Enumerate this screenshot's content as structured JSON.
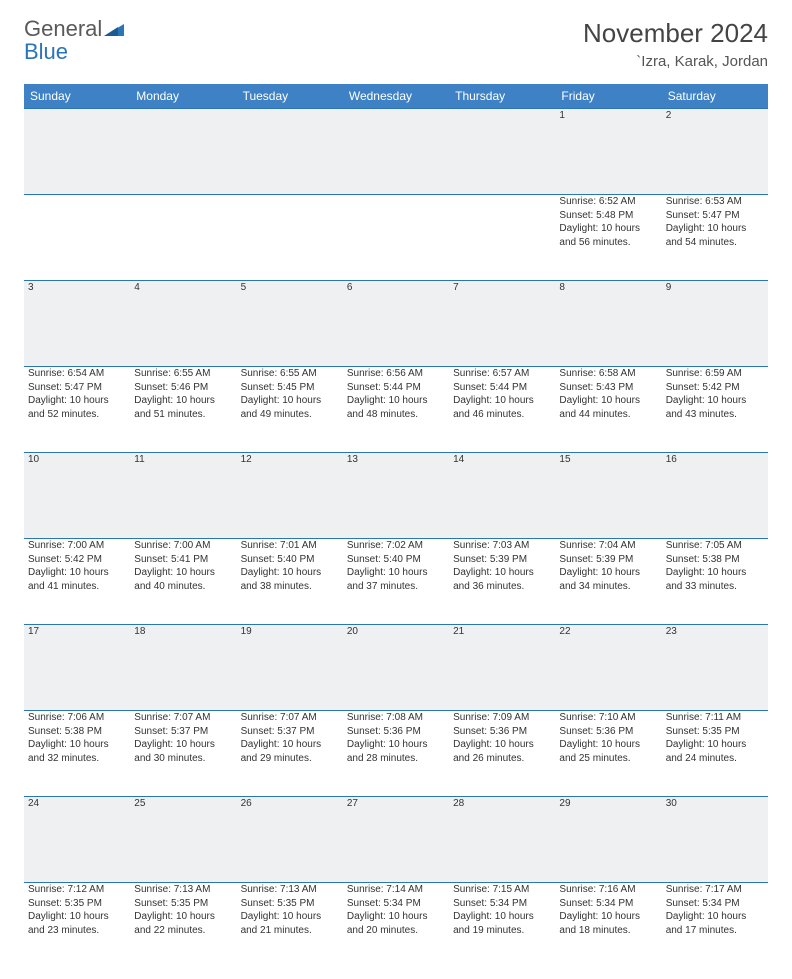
{
  "logo": {
    "line1": "General",
    "line2": "Blue"
  },
  "title": "November 2024",
  "subtitle": "`Izra, Karak, Jordan",
  "header_bg": "#3e81c4",
  "header_fg": "#ffffff",
  "daynum_bg": "#eef0f2",
  "border_color": "#2a74b8",
  "weekdays": [
    "Sunday",
    "Monday",
    "Tuesday",
    "Wednesday",
    "Thursday",
    "Friday",
    "Saturday"
  ],
  "weeks": [
    {
      "nums": [
        "",
        "",
        "",
        "",
        "",
        "1",
        "2"
      ],
      "cells": [
        "",
        "",
        "",
        "",
        "",
        "Sunrise: 6:52 AM\nSunset: 5:48 PM\nDaylight: 10 hours and 56 minutes.",
        "Sunrise: 6:53 AM\nSunset: 5:47 PM\nDaylight: 10 hours and 54 minutes."
      ]
    },
    {
      "nums": [
        "3",
        "4",
        "5",
        "6",
        "7",
        "8",
        "9"
      ],
      "cells": [
        "Sunrise: 6:54 AM\nSunset: 5:47 PM\nDaylight: 10 hours and 52 minutes.",
        "Sunrise: 6:55 AM\nSunset: 5:46 PM\nDaylight: 10 hours and 51 minutes.",
        "Sunrise: 6:55 AM\nSunset: 5:45 PM\nDaylight: 10 hours and 49 minutes.",
        "Sunrise: 6:56 AM\nSunset: 5:44 PM\nDaylight: 10 hours and 48 minutes.",
        "Sunrise: 6:57 AM\nSunset: 5:44 PM\nDaylight: 10 hours and 46 minutes.",
        "Sunrise: 6:58 AM\nSunset: 5:43 PM\nDaylight: 10 hours and 44 minutes.",
        "Sunrise: 6:59 AM\nSunset: 5:42 PM\nDaylight: 10 hours and 43 minutes."
      ]
    },
    {
      "nums": [
        "10",
        "11",
        "12",
        "13",
        "14",
        "15",
        "16"
      ],
      "cells": [
        "Sunrise: 7:00 AM\nSunset: 5:42 PM\nDaylight: 10 hours and 41 minutes.",
        "Sunrise: 7:00 AM\nSunset: 5:41 PM\nDaylight: 10 hours and 40 minutes.",
        "Sunrise: 7:01 AM\nSunset: 5:40 PM\nDaylight: 10 hours and 38 minutes.",
        "Sunrise: 7:02 AM\nSunset: 5:40 PM\nDaylight: 10 hours and 37 minutes.",
        "Sunrise: 7:03 AM\nSunset: 5:39 PM\nDaylight: 10 hours and 36 minutes.",
        "Sunrise: 7:04 AM\nSunset: 5:39 PM\nDaylight: 10 hours and 34 minutes.",
        "Sunrise: 7:05 AM\nSunset: 5:38 PM\nDaylight: 10 hours and 33 minutes."
      ]
    },
    {
      "nums": [
        "17",
        "18",
        "19",
        "20",
        "21",
        "22",
        "23"
      ],
      "cells": [
        "Sunrise: 7:06 AM\nSunset: 5:38 PM\nDaylight: 10 hours and 32 minutes.",
        "Sunrise: 7:07 AM\nSunset: 5:37 PM\nDaylight: 10 hours and 30 minutes.",
        "Sunrise: 7:07 AM\nSunset: 5:37 PM\nDaylight: 10 hours and 29 minutes.",
        "Sunrise: 7:08 AM\nSunset: 5:36 PM\nDaylight: 10 hours and 28 minutes.",
        "Sunrise: 7:09 AM\nSunset: 5:36 PM\nDaylight: 10 hours and 26 minutes.",
        "Sunrise: 7:10 AM\nSunset: 5:36 PM\nDaylight: 10 hours and 25 minutes.",
        "Sunrise: 7:11 AM\nSunset: 5:35 PM\nDaylight: 10 hours and 24 minutes."
      ]
    },
    {
      "nums": [
        "24",
        "25",
        "26",
        "27",
        "28",
        "29",
        "30"
      ],
      "cells": [
        "Sunrise: 7:12 AM\nSunset: 5:35 PM\nDaylight: 10 hours and 23 minutes.",
        "Sunrise: 7:13 AM\nSunset: 5:35 PM\nDaylight: 10 hours and 22 minutes.",
        "Sunrise: 7:13 AM\nSunset: 5:35 PM\nDaylight: 10 hours and 21 minutes.",
        "Sunrise: 7:14 AM\nSunset: 5:34 PM\nDaylight: 10 hours and 20 minutes.",
        "Sunrise: 7:15 AM\nSunset: 5:34 PM\nDaylight: 10 hours and 19 minutes.",
        "Sunrise: 7:16 AM\nSunset: 5:34 PM\nDaylight: 10 hours and 18 minutes.",
        "Sunrise: 7:17 AM\nSunset: 5:34 PM\nDaylight: 10 hours and 17 minutes."
      ]
    }
  ]
}
